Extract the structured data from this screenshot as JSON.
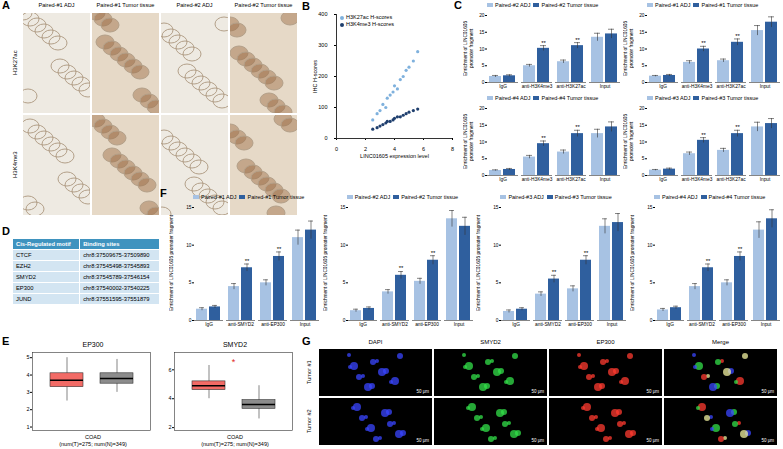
{
  "figure_a": {
    "panel": "A",
    "columns": [
      "Paired-#1 ADJ",
      "Paired-#1 Tumor tissue",
      "Paired-#2 ADJ",
      "Paired-#2 Tumor tissue"
    ],
    "rows": [
      "H3K27ac",
      "H3K4me3"
    ]
  },
  "chart_data": [
    {
      "panel": "B",
      "type": "scatter",
      "x_label": "LINC01605 expression level",
      "y_label": "IHC H-scores",
      "xlim": [
        0,
        8
      ],
      "xticks": [
        0,
        2,
        4,
        6,
        8
      ],
      "ylim": [
        0,
        400
      ],
      "yticks": [
        0,
        100,
        200,
        300,
        400
      ],
      "legend": "top-left",
      "series": [
        {
          "name": "H3K27ac H-scores",
          "color": "#7fb1dd",
          "marker": "circle",
          "x": [
            2.5,
            2.8,
            3.0,
            3.2,
            3.4,
            3.5,
            3.7,
            3.9,
            4.0,
            4.2,
            4.4,
            4.6,
            4.8,
            5.0,
            5.3,
            5.6
          ],
          "values": [
            60,
            80,
            90,
            110,
            100,
            130,
            140,
            150,
            170,
            160,
            190,
            200,
            220,
            230,
            250,
            280
          ]
        },
        {
          "name": "H3K4me3 H-scores",
          "color": "#1f3f6e",
          "marker": "circle",
          "x": [
            2.5,
            2.8,
            3.0,
            3.2,
            3.4,
            3.5,
            3.7,
            3.9,
            4.0,
            4.2,
            4.4,
            4.6,
            4.8,
            5.0,
            5.3,
            5.6
          ],
          "values": [
            30,
            35,
            40,
            45,
            50,
            55,
            55,
            60,
            65,
            70,
            70,
            75,
            80,
            85,
            90,
            95
          ]
        }
      ]
    },
    {
      "panel": "C",
      "type": "bar",
      "categories": [
        "IgG",
        "anti-H3K4me3",
        "anti-H3K27ac",
        "Input"
      ],
      "y_label": "Enrichment of LINC01605 promoter fragment",
      "ylim": [
        0,
        20
      ],
      "yticks": [
        0,
        5,
        10,
        15,
        20
      ],
      "legend": "top-left",
      "annotations": [
        null,
        "**",
        "**",
        null
      ],
      "series": [
        {
          "name": "Paired-#2 ADJ",
          "color": "#a7c2e3",
          "values": [
            1.8,
            5.0,
            6.2,
            13.5
          ],
          "errors": [
            0.3,
            0.4,
            0.5,
            1.2
          ]
        },
        {
          "name": "Paired-#2 Tumor tissue",
          "color": "#2f5f9e",
          "values": [
            2.0,
            10.2,
            11.0,
            14.5
          ],
          "errors": [
            0.3,
            0.8,
            0.9,
            1.4
          ]
        }
      ]
    },
    {
      "type": "bar",
      "categories": [
        "IgG",
        "anti-H3K4me3",
        "anti-H3K27ac",
        "Input"
      ],
      "y_label": "Enrichment of LINC01605 promoter fragment",
      "ylim": [
        0,
        20
      ],
      "yticks": [
        0,
        5,
        10,
        15,
        20
      ],
      "legend": "top-left",
      "annotations": [
        null,
        "**",
        "**",
        null
      ],
      "series": [
        {
          "name": "Paired-#1 ADJ",
          "color": "#a7c2e3",
          "values": [
            1.9,
            6.0,
            6.5,
            15.5
          ],
          "errors": [
            0.2,
            0.5,
            0.5,
            1.5
          ]
        },
        {
          "name": "Paired-#1 Tumor tissue",
          "color": "#2f5f9e",
          "values": [
            2.1,
            10.0,
            12.0,
            18.0
          ],
          "errors": [
            0.3,
            0.8,
            1.0,
            1.6
          ]
        }
      ]
    },
    {
      "type": "bar",
      "categories": [
        "IgG",
        "anti-H3K4me3",
        "anti-H3K27ac",
        "Input"
      ],
      "y_label": "Enrichment of LINC01605 promoter fragment",
      "ylim": [
        0,
        20
      ],
      "yticks": [
        0,
        5,
        10,
        15,
        20
      ],
      "legend": "top-left",
      "annotations": [
        null,
        "**",
        "**",
        null
      ],
      "series": [
        {
          "name": "Paired-#4 ADJ",
          "color": "#a7c2e3",
          "values": [
            1.5,
            5.5,
            7.0,
            12.5
          ],
          "errors": [
            0.2,
            0.5,
            0.6,
            1.3
          ]
        },
        {
          "name": "Paired-#4 Tumor tissue",
          "color": "#2f5f9e",
          "values": [
            1.8,
            9.5,
            12.5,
            14.5
          ],
          "errors": [
            0.3,
            0.8,
            1.0,
            1.5
          ]
        }
      ]
    },
    {
      "type": "bar",
      "categories": [
        "IgG",
        "anti-H3K4me3",
        "anti-H3K27ac",
        "Input"
      ],
      "y_label": "Enrichment of LINC01605 promoter fragment",
      "ylim": [
        0,
        20
      ],
      "yticks": [
        0,
        5,
        10,
        15,
        20
      ],
      "legend": "top-left",
      "annotations": [
        null,
        "**",
        "**",
        null
      ],
      "series": [
        {
          "name": "Paired-#3 ADJ",
          "color": "#a7c2e3",
          "values": [
            1.6,
            6.5,
            7.5,
            14.5
          ],
          "errors": [
            0.2,
            0.5,
            0.6,
            1.4
          ]
        },
        {
          "name": "Paired-#3 Tumor tissue",
          "color": "#2f5f9e",
          "values": [
            1.9,
            10.5,
            12.5,
            15.5
          ],
          "errors": [
            0.3,
            0.8,
            1.0,
            1.5
          ]
        }
      ]
    },
    {
      "panel": "E",
      "type": "box",
      "title": "EP300",
      "x_label": [
        "COAD",
        "(num(T)=275; num(N)=349)"
      ],
      "ylim": [
        0.8,
        5.3
      ],
      "yticks": [
        1,
        2,
        3,
        4,
        5
      ],
      "boxes": [
        {
          "color": "#f26b66",
          "min": 2.5,
          "q1": 3.3,
          "median": 3.7,
          "q3": 4.1,
          "max": 5.0
        },
        {
          "color": "#8c8c8c",
          "min": 3.0,
          "q1": 3.5,
          "median": 3.8,
          "q3": 4.1,
          "max": 4.9
        }
      ]
    },
    {
      "type": "box",
      "title": "SMYD2",
      "x_label": [
        "COAD",
        "(num(T)=275; num(N)=349)"
      ],
      "annotation": "*",
      "ylim": [
        1.8,
        7.2
      ],
      "yticks": [
        2,
        4,
        6
      ],
      "boxes": [
        {
          "color": "#f26b66",
          "min": 4.0,
          "q1": 4.6,
          "median": 4.9,
          "q3": 5.2,
          "max": 6.3
        },
        {
          "color": "#8c8c8c",
          "min": 2.6,
          "q1": 3.3,
          "median": 3.6,
          "q3": 3.9,
          "max": 4.9
        }
      ]
    },
    {
      "panel": "F",
      "type": "bar",
      "categories": [
        "IgG",
        "anti-SMYD2",
        "anti-EP300",
        "Input"
      ],
      "y_label": "Enrichment of LINC01605 promoter fragment",
      "ylim": [
        0,
        15
      ],
      "yticks": [
        0,
        5,
        10,
        15
      ],
      "legend": "top-left",
      "annotations": [
        null,
        "**",
        "**",
        null
      ],
      "series": [
        {
          "name": "Paired-#1 ADJ",
          "color": "#a7c2e3",
          "values": [
            1.5,
            4.5,
            5.0,
            11.0
          ],
          "errors": [
            0.2,
            0.4,
            0.4,
            1.0
          ]
        },
        {
          "name": "Paired-#1 Tumor tissue",
          "color": "#2f5f9e",
          "values": [
            1.8,
            7.0,
            8.5,
            12.0
          ],
          "errors": [
            0.2,
            0.5,
            0.6,
            1.2
          ]
        }
      ]
    },
    {
      "type": "bar",
      "categories": [
        "IgG",
        "anti-SMYD2",
        "anti-EP300",
        "Input"
      ],
      "y_label": "Enrichment of LINC01605 promoter fragment",
      "ylim": [
        0,
        15
      ],
      "yticks": [
        0,
        5,
        10,
        15
      ],
      "legend": "top-left",
      "annotations": [
        null,
        "**",
        "**",
        null
      ],
      "series": [
        {
          "name": "Paired-#2 ADJ",
          "color": "#a7c2e3",
          "values": [
            1.3,
            3.8,
            5.2,
            13.5
          ],
          "errors": [
            0.2,
            0.3,
            0.4,
            1.1
          ]
        },
        {
          "name": "Paired-#2 Tumor tissue",
          "color": "#2f5f9e",
          "values": [
            1.6,
            6.0,
            8.0,
            12.5
          ],
          "errors": [
            0.2,
            0.5,
            0.6,
            1.2
          ]
        }
      ]
    },
    {
      "type": "bar",
      "categories": [
        "IgG",
        "anti-SMYD2",
        "anti-EP300",
        "Input"
      ],
      "y_label": "Enrichment of LINC01605 promoter fragment",
      "ylim": [
        0,
        15
      ],
      "yticks": [
        0,
        5,
        10,
        15
      ],
      "legend": "top-left",
      "annotations": [
        null,
        "**",
        "**",
        null
      ],
      "series": [
        {
          "name": "Paired-#3 ADJ",
          "color": "#a7c2e3",
          "values": [
            1.2,
            3.5,
            4.2,
            12.5
          ],
          "errors": [
            0.2,
            0.3,
            0.4,
            1.0
          ]
        },
        {
          "name": "Paired-#3 Tumor tissue",
          "color": "#2f5f9e",
          "values": [
            1.5,
            5.5,
            8.0,
            13.0
          ],
          "errors": [
            0.2,
            0.5,
            0.6,
            1.2
          ]
        }
      ]
    },
    {
      "type": "bar",
      "categories": [
        "IgG",
        "anti-SMYD2",
        "anti-EP300",
        "Input"
      ],
      "y_label": "Enrichment of LINC01605 promoter fragment",
      "ylim": [
        0,
        15
      ],
      "yticks": [
        0,
        5,
        10,
        15
      ],
      "legend": "top-left",
      "annotations": [
        null,
        "**",
        "**",
        null
      ],
      "series": [
        {
          "name": "Paired-#4 ADJ",
          "color": "#a7c2e3",
          "values": [
            1.4,
            4.5,
            5.0,
            12.0
          ],
          "errors": [
            0.2,
            0.4,
            0.4,
            1.1
          ]
        },
        {
          "name": "Paired-#4 Tumor tissue",
          "color": "#2f5f9e",
          "values": [
            1.7,
            7.0,
            8.5,
            13.5
          ],
          "errors": [
            0.2,
            0.5,
            0.6,
            1.2
          ]
        }
      ]
    }
  ],
  "table": {
    "panel": "D",
    "header": [
      "Cis-Regulated motif",
      "Binding sites"
    ],
    "rows": [
      [
        "CTCF",
        "chr8:37509675-37509890"
      ],
      [
        "EZH2",
        "chr8:37545498-37545893"
      ],
      [
        "SMYD2",
        "chr8:37545789-37546154"
      ],
      [
        "EP300",
        "chr8:37540002-37540225"
      ],
      [
        "JUND",
        "chr8:37551595-37551879"
      ]
    ]
  },
  "figure_g": {
    "panel": "G",
    "columns": [
      "DAPI",
      "SMYD2",
      "EP300",
      "Merge"
    ],
    "rows": [
      "Tumor #1",
      "Tumor #2"
    ],
    "scale_bar": "50 μm"
  }
}
